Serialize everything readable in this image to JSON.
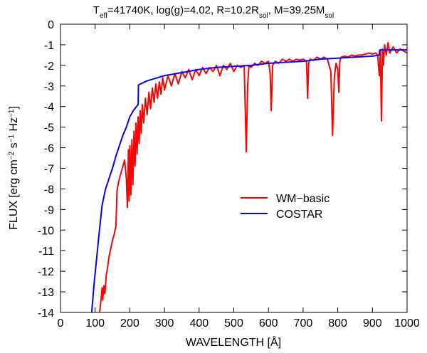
{
  "chart_data": {
    "type": "line",
    "title": [
      {
        "text": "T"
      },
      {
        "text": "eff",
        "sub": true
      },
      {
        "text": "=41740K, log(g)=4.02, R=10.2R"
      },
      {
        "text": "sol",
        "sub": true
      },
      {
        "text": ", M=39.25M"
      },
      {
        "text": "sol",
        "sub": true
      }
    ],
    "x_label": [
      {
        "text": "WAVELENGTH [Å]"
      }
    ],
    "y_label": [
      {
        "text": "FLUX [erg cm"
      },
      {
        "text": "−2",
        "sup": true
      },
      {
        "text": " s"
      },
      {
        "text": "−1",
        "sup": true
      },
      {
        "text": " Hz"
      },
      {
        "text": "−1",
        "sup": true
      },
      {
        "text": "]"
      }
    ],
    "xlim": [
      0,
      1000
    ],
    "ylim": [
      -14,
      0
    ],
    "xticks": [
      0,
      100,
      200,
      300,
      400,
      500,
      600,
      700,
      800,
      900,
      1000
    ],
    "yticks": [
      0,
      -1,
      -2,
      -3,
      -4,
      -5,
      -6,
      -7,
      -8,
      -9,
      -10,
      -11,
      -12,
      -13,
      -14
    ],
    "grid": false,
    "legend": "center right",
    "series": [
      {
        "name": "WM−basic",
        "color": "#ff0000",
        "x": [
          113,
          118,
          120,
          122,
          125,
          128,
          132,
          136,
          140,
          145,
          150,
          155,
          160,
          163,
          166,
          170,
          175,
          180,
          185,
          190,
          193,
          196,
          198,
          200,
          203,
          206,
          209,
          212,
          215,
          218,
          221,
          224,
          227,
          230,
          233,
          236,
          240,
          245,
          250,
          255,
          260,
          265,
          270,
          275,
          280,
          285,
          290,
          295,
          300,
          310,
          320,
          330,
          340,
          350,
          360,
          370,
          380,
          390,
          400,
          410,
          420,
          430,
          440,
          450,
          460,
          470,
          480,
          490,
          500,
          510,
          520,
          530,
          536,
          540,
          544,
          550,
          560,
          570,
          580,
          590,
          600,
          605,
          608,
          612,
          620,
          630,
          640,
          650,
          660,
          670,
          680,
          690,
          700,
          710,
          713,
          716,
          720,
          730,
          740,
          750,
          760,
          770,
          780,
          785,
          790,
          795,
          800,
          803,
          806,
          810,
          820,
          830,
          840,
          850,
          860,
          870,
          880,
          890,
          900,
          910,
          915,
          920,
          923,
          926,
          929,
          932,
          935,
          940,
          945,
          950,
          960,
          970,
          980,
          990,
          1000
        ],
        "values": [
          -14,
          -13.2,
          -12.8,
          -13.4,
          -12.7,
          -13.1,
          -12.2,
          -11.8,
          -11.3,
          -10.9,
          -10.5,
          -10.2,
          -9.8,
          -8.1,
          -7.8,
          -7.5,
          -7.2,
          -6.9,
          -6.6,
          -7.5,
          -8.9,
          -6.1,
          -8.6,
          -5.9,
          -8.3,
          -5.6,
          -7.8,
          -5.2,
          -6.9,
          -4.8,
          -6.3,
          -4.5,
          -5.8,
          -4.2,
          -5.3,
          -3.9,
          -4.8,
          -3.6,
          -4.4,
          -3.3,
          -4.1,
          -3.1,
          -3.8,
          -2.9,
          -3.6,
          -2.8,
          -3.4,
          -2.6,
          -3.2,
          -2.5,
          -3.0,
          -2.4,
          -2.9,
          -2.3,
          -2.6,
          -2.2,
          -2.7,
          -2.2,
          -2.5,
          -2.1,
          -2.4,
          -2.1,
          -2.3,
          -2.0,
          -2.5,
          -2.0,
          -2.2,
          -1.9,
          -2.3,
          -2.0,
          -2.1,
          -2.0,
          -6.2,
          -2.9,
          -2.0,
          -2.1,
          -1.9,
          -2.0,
          -1.8,
          -1.9,
          -1.8,
          -2.4,
          -4.2,
          -2.0,
          -1.8,
          -1.9,
          -1.7,
          -1.8,
          -1.7,
          -1.8,
          -1.7,
          -1.75,
          -1.7,
          -1.8,
          -3.6,
          -1.9,
          -1.7,
          -1.75,
          -1.6,
          -1.7,
          -1.6,
          -1.7,
          -2.3,
          -5.4,
          -2.6,
          -1.9,
          -2.2,
          -3.3,
          -1.8,
          -1.6,
          -1.55,
          -1.6,
          -1.5,
          -1.55,
          -1.5,
          -1.5,
          -1.45,
          -1.4,
          -1.45,
          -1.4,
          -1.5,
          -2.5,
          -1.3,
          -4.7,
          -1.2,
          -2.0,
          -1.0,
          -1.5,
          -0.9,
          -1.4,
          -1.1,
          -1.4,
          -1.2,
          -1.3,
          -1.4
        ]
      },
      {
        "name": "COSTAR",
        "color": "#0000ff",
        "x": [
          90,
          97,
          110,
          120,
          130,
          140,
          150,
          160,
          170,
          180,
          190,
          200,
          210,
          224,
          225,
          250,
          300,
          350,
          400,
          450,
          500,
          550,
          600,
          650,
          700,
          750,
          800,
          850,
          900,
          920,
          921,
          1000
        ],
        "values": [
          -14,
          -12.6,
          -10.4,
          -8.8,
          -8.0,
          -7.5,
          -7.0,
          -6.4,
          -5.9,
          -5.4,
          -5.0,
          -4.5,
          -4.2,
          -3.9,
          -2.95,
          -2.75,
          -2.5,
          -2.35,
          -2.2,
          -2.1,
          -2.05,
          -2.0,
          -1.9,
          -1.85,
          -1.8,
          -1.7,
          -1.65,
          -1.6,
          -1.55,
          -1.5,
          -1.25,
          -1.25
        ]
      }
    ]
  }
}
